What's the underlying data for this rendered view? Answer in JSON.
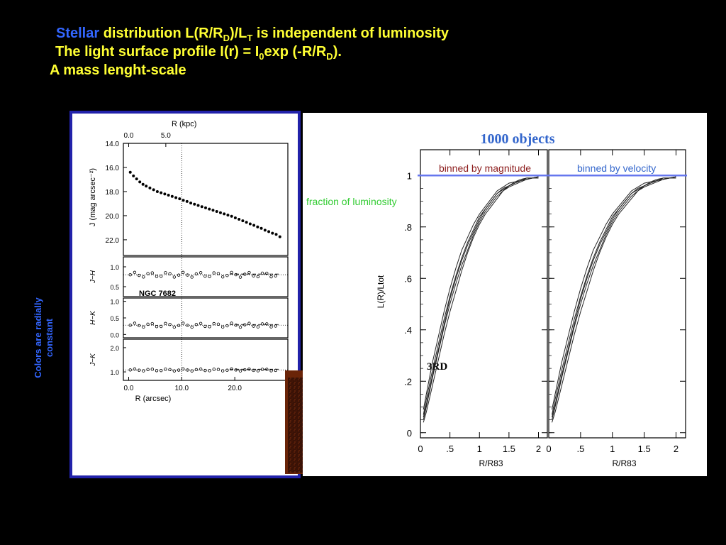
{
  "slide": {
    "line1_word": "Stellar",
    "line1_a": " distribution  L(R/R",
    "line1_sub_d": "D",
    "line1_b": ")/L",
    "line1_sub_t": "T",
    "line1_c": " is  independent  of luminosity",
    "line2_a": "The light surface profile I(r) = I",
    "line2_sub0": "0",
    "line2_b": "exp (-R/R",
    "line2_sub_d": "D",
    "line2_c": ").",
    "line3": "A mass lenght-scale",
    "side_line1": "Colors are radially",
    "side_line2": "constant"
  },
  "colors": {
    "background": "#000000",
    "heading": "#ffff33",
    "accent_blue": "#3366ff",
    "panel_border": "#2222aa",
    "fraction_label": "#33cc33",
    "binned_label": "#8b1a1a",
    "one_line": "#6677ee"
  },
  "galaxy_image": {
    "icon": "galaxy-image"
  },
  "chart_data": [
    {
      "type": "scatter",
      "title": "NGC 7682",
      "xlabel": "R (arcsec)",
      "x2label": "R (kpc)",
      "x2_ticks": [
        "0.0",
        "5.0"
      ],
      "xlim": [
        -1,
        30
      ],
      "x_ticks": [
        "0.0",
        "10.0",
        "20.0"
      ],
      "ylabel": "J (mag arcsec⁻²)",
      "ylim": [
        14,
        23.3
      ],
      "y_inverted": true,
      "y_ticks": [
        "14.0",
        "16.0",
        "18.0",
        "20.0",
        "22.0"
      ],
      "x": [
        0.3,
        0.9,
        1.5,
        2.1,
        2.7,
        3.3,
        4.0,
        4.7,
        5.4,
        6.1,
        6.8,
        7.5,
        8.2,
        8.9,
        9.6,
        10.3,
        11.0,
        11.7,
        12.4,
        13.1,
        13.8,
        14.5,
        15.2,
        15.9,
        16.6,
        17.3,
        18.0,
        18.7,
        19.4,
        20.1,
        20.8,
        21.5,
        22.2,
        22.9,
        23.6,
        24.3,
        25.0,
        25.7,
        26.4,
        27.1,
        27.8,
        28.5
      ],
      "y": [
        16.4,
        16.7,
        16.95,
        17.2,
        17.4,
        17.55,
        17.7,
        17.85,
        18.0,
        18.1,
        18.2,
        18.3,
        18.4,
        18.5,
        18.6,
        18.72,
        18.82,
        18.95,
        19.05,
        19.15,
        19.25,
        19.35,
        19.45,
        19.55,
        19.65,
        19.75,
        19.85,
        19.95,
        20.05,
        20.18,
        20.3,
        20.42,
        20.55,
        20.68,
        20.8,
        20.93,
        21.05,
        21.2,
        21.32,
        21.45,
        21.55,
        21.75
      ],
      "annotation": "NGC 7682",
      "subpanels": [
        {
          "ylabel": "J−H",
          "ylim": [
            0.25,
            1.25
          ],
          "y_ticks": [
            "1.0",
            "0.5"
          ],
          "value": 0.8,
          "scatter": 0.06
        },
        {
          "ylabel": "H−K",
          "ylim": [
            -0.1,
            1.1
          ],
          "y_ticks": [
            "1.0",
            "0.5",
            "0.0"
          ],
          "value": 0.28,
          "scatter": 0.06
        },
        {
          "ylabel": "J−K",
          "ylim": [
            0.65,
            2.35
          ],
          "y_ticks": [
            "2.0",
            "1.0"
          ],
          "value": 1.08,
          "scatter": 0.04
        }
      ]
    },
    {
      "type": "line",
      "title": "1000 objects",
      "side_label": "fraction of luminosity",
      "ylabel": "L(R)/Ltot",
      "xlabel": "R/R83",
      "xlim": [
        0,
        2.15
      ],
      "ylim": [
        -0.02,
        1.1
      ],
      "x_ticks": [
        "0",
        ".5",
        "1",
        "1.5",
        "2"
      ],
      "y_ticks": [
        "0",
        ".2",
        ".4",
        ".6",
        ".8",
        "1"
      ],
      "reference_line": 1,
      "annotation": "3RD",
      "panels": [
        {
          "label": "binned by magnitude"
        },
        {
          "label": "binned by velocity"
        }
      ],
      "curve_x": [
        0.05,
        0.1,
        0.2,
        0.3,
        0.4,
        0.5,
        0.6,
        0.7,
        0.8,
        0.9,
        1.0,
        1.1,
        1.2,
        1.3,
        1.4,
        1.5,
        1.6,
        1.7,
        1.8,
        1.9,
        2.0
      ],
      "series": [
        {
          "values": [
            0.05,
            0.1,
            0.21,
            0.31,
            0.41,
            0.5,
            0.58,
            0.65,
            0.71,
            0.77,
            0.82,
            0.86,
            0.89,
            0.92,
            0.94,
            0.96,
            0.97,
            0.98,
            0.985,
            0.99,
            0.99
          ]
        },
        {
          "values": [
            0.07,
            0.13,
            0.24,
            0.34,
            0.44,
            0.53,
            0.61,
            0.68,
            0.74,
            0.79,
            0.84,
            0.87,
            0.9,
            0.93,
            0.95,
            0.96,
            0.975,
            0.98,
            0.99,
            0.99,
            0.995
          ]
        },
        {
          "values": [
            0.09,
            0.15,
            0.27,
            0.37,
            0.47,
            0.56,
            0.64,
            0.71,
            0.76,
            0.81,
            0.85,
            0.88,
            0.91,
            0.94,
            0.955,
            0.97,
            0.975,
            0.985,
            0.99,
            0.99,
            0.995
          ]
        },
        {
          "values": [
            0.04,
            0.08,
            0.18,
            0.28,
            0.38,
            0.47,
            0.55,
            0.63,
            0.7,
            0.76,
            0.81,
            0.85,
            0.88,
            0.91,
            0.94,
            0.955,
            0.965,
            0.975,
            0.985,
            0.99,
            0.99
          ]
        },
        {
          "values": [
            0.06,
            0.11,
            0.22,
            0.32,
            0.42,
            0.52,
            0.6,
            0.67,
            0.73,
            0.78,
            0.83,
            0.87,
            0.9,
            0.93,
            0.945,
            0.96,
            0.97,
            0.98,
            0.985,
            0.99,
            0.995
          ]
        }
      ]
    }
  ]
}
